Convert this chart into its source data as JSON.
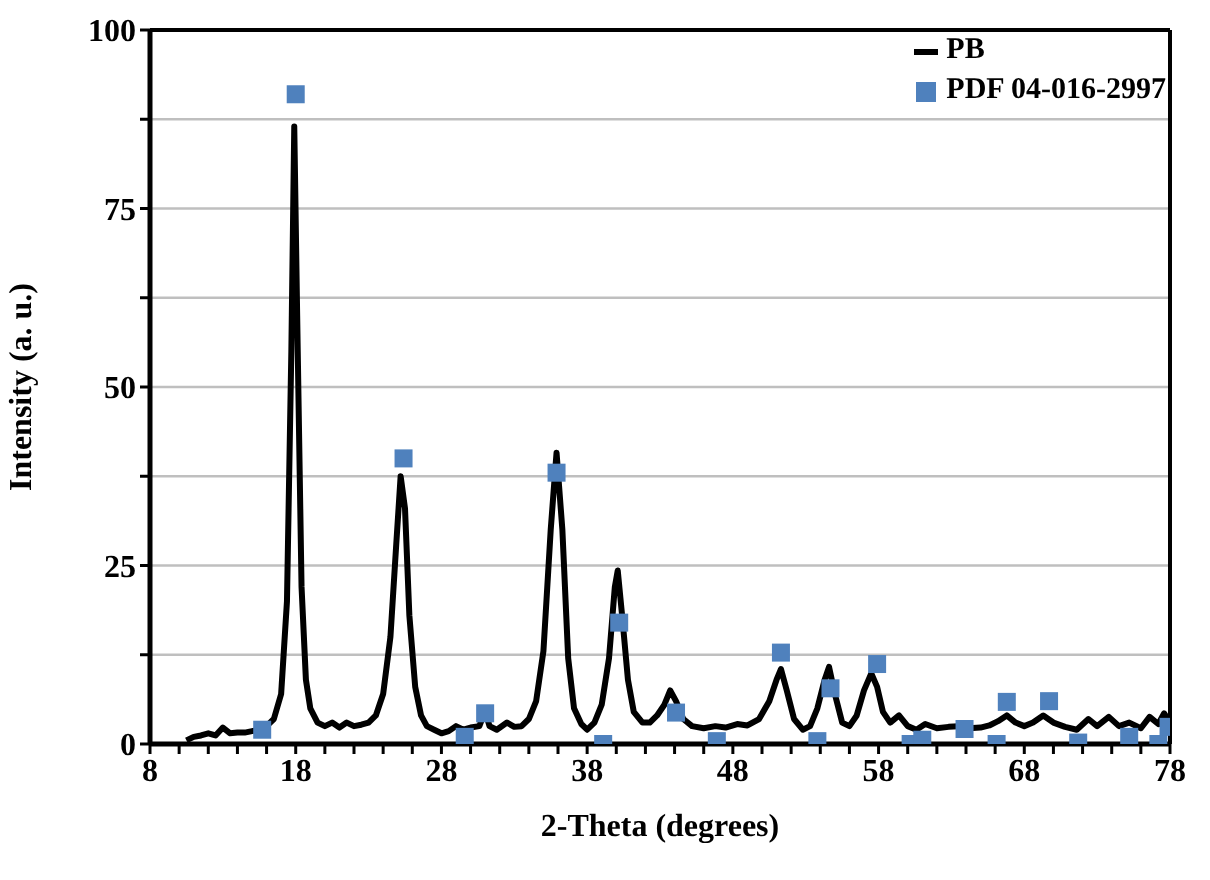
{
  "chart_data": {
    "type": "line",
    "xlabel": "2-Theta (degrees)",
    "ylabel": "Intensity (a. u.)",
    "xlim": [
      8,
      78
    ],
    "xticks": [
      8,
      {
        "value": 10,
        "label": null
      },
      {
        "value": 12,
        "label": null
      },
      {
        "value": 14,
        "label": null
      },
      {
        "value": 16,
        "label": null
      },
      18,
      {
        "value": 20,
        "label": null
      },
      {
        "value": 22,
        "label": null
      },
      {
        "value": 24,
        "label": null
      },
      {
        "value": 26,
        "label": null
      },
      28,
      {
        "value": 30,
        "label": null
      },
      {
        "value": 32,
        "label": null
      },
      {
        "value": 34,
        "label": null
      },
      {
        "value": 36,
        "label": null
      },
      38,
      {
        "value": 40,
        "label": null
      },
      {
        "value": 42,
        "label": null
      },
      {
        "value": 44,
        "label": null
      },
      {
        "value": 46,
        "label": null
      },
      48,
      {
        "value": 50,
        "label": null
      },
      {
        "value": 52,
        "label": null
      },
      {
        "value": 54,
        "label": null
      },
      {
        "value": 56,
        "label": null
      },
      58,
      {
        "value": 60,
        "label": null
      },
      {
        "value": 62,
        "label": null
      },
      {
        "value": 64,
        "label": null
      },
      {
        "value": 66,
        "label": null
      },
      68,
      {
        "value": 70,
        "label": null
      },
      {
        "value": 72,
        "label": null
      },
      {
        "value": 74,
        "label": null
      },
      {
        "value": 76,
        "label": null
      },
      78
    ],
    "ylim": [
      0,
      100
    ],
    "yticks": [
      0,
      {
        "value": 12.5,
        "label": null
      },
      25,
      {
        "value": 37.5,
        "label": null
      },
      50,
      {
        "value": 62.5,
        "label": null
      },
      75,
      {
        "value": 87.5,
        "label": null
      },
      100
    ],
    "grid": "y",
    "legend": "top right",
    "series": [
      {
        "name": "PB",
        "color": "#000000",
        "marker": "none",
        "line_style": "solid",
        "x": [
          10.5,
          11,
          11.5,
          12,
          12.5,
          13,
          13.5,
          14,
          14.5,
          15,
          15.5,
          16,
          16.5,
          17,
          17.4,
          17.7,
          17.9,
          18.1,
          18.4,
          18.7,
          19,
          19.5,
          20,
          20.5,
          21,
          21.5,
          22,
          22.5,
          23,
          23.5,
          24,
          24.5,
          24.9,
          25.2,
          25.5,
          25.8,
          26.2,
          26.6,
          27,
          27.5,
          28,
          28.5,
          29,
          29.5,
          30,
          30.6,
          31,
          31.3,
          31.8,
          32.5,
          33,
          33.5,
          34,
          34.5,
          35,
          35.5,
          35.9,
          36.3,
          36.7,
          37.1,
          37.6,
          38,
          38.5,
          39,
          39.5,
          39.9,
          40.1,
          40.4,
          40.8,
          41.2,
          41.8,
          42.3,
          42.8,
          43.3,
          43.7,
          44.1,
          44.6,
          45.2,
          46,
          46.8,
          47.5,
          48.3,
          49,
          49.8,
          50.5,
          51,
          51.3,
          51.7,
          52.2,
          52.8,
          53.3,
          53.8,
          54.3,
          54.6,
          55,
          55.5,
          56,
          56.5,
          57,
          57.5,
          57.9,
          58.3,
          58.8,
          59.4,
          60,
          60.6,
          61.2,
          62,
          62.8,
          63.5,
          64.2,
          65,
          65.6,
          66.2,
          66.8,
          67.4,
          68,
          68.6,
          69.3,
          70,
          70.8,
          71.6,
          72.4,
          73,
          73.8,
          74.5,
          75.2,
          76,
          76.6,
          77.2,
          77.6,
          78
        ],
        "values": [
          0.5,
          1,
          1.2,
          1.5,
          1.2,
          2.3,
          1.5,
          1.6,
          1.6,
          1.8,
          2,
          2.5,
          3.5,
          7,
          20,
          55,
          86.5,
          60,
          22,
          9,
          5,
          3,
          2.5,
          3,
          2.3,
          3,
          2.5,
          2.7,
          3,
          4,
          7,
          15,
          28,
          37.5,
          33,
          18,
          8,
          4,
          2.5,
          2,
          1.5,
          1.8,
          2.5,
          2,
          2.3,
          2.5,
          4.6,
          2.5,
          2,
          3,
          2.4,
          2.5,
          3.5,
          6,
          13,
          30,
          40.8,
          30,
          12,
          5,
          2.8,
          2,
          3,
          5.5,
          12,
          22,
          24.3,
          18,
          9,
          4.5,
          3,
          3,
          4,
          5.5,
          7.5,
          6,
          3.5,
          2.5,
          2.2,
          2.5,
          2.3,
          2.8,
          2.6,
          3.5,
          6,
          9,
          10.5,
          7.5,
          3.5,
          2,
          2.5,
          5,
          9,
          10.8,
          7,
          3,
          2.5,
          4,
          7.5,
          9.9,
          8,
          4.5,
          3,
          4,
          2.5,
          2,
          2.8,
          2.2,
          2.4,
          2.5,
          2.2,
          2.3,
          2.6,
          3.2,
          4,
          3,
          2.5,
          3,
          4,
          3,
          2.4,
          2,
          3.5,
          2.5,
          3.8,
          2.5,
          3,
          2.2,
          3.8,
          2.8,
          4.3,
          3
        ]
      },
      {
        "name": "PDF 04-016-2997",
        "type": "scatter",
        "color": "#4f81bd",
        "marker": "square",
        "x": [
          15.7,
          18.0,
          25.4,
          29.6,
          31.0,
          35.9,
          39.1,
          40.2,
          44.1,
          46.9,
          51.3,
          53.8,
          54.7,
          57.9,
          60.2,
          61.0,
          63.9,
          66.1,
          66.8,
          69.7,
          71.7,
          75.2,
          77.2,
          77.9
        ],
        "values": [
          2,
          91,
          40,
          1,
          4.3,
          38,
          0,
          17,
          4.4,
          0.4,
          12.8,
          0.4,
          7.8,
          11.2,
          0,
          0.6,
          2.1,
          0,
          5.9,
          6,
          0.2,
          1,
          0,
          2.4
        ]
      }
    ]
  }
}
